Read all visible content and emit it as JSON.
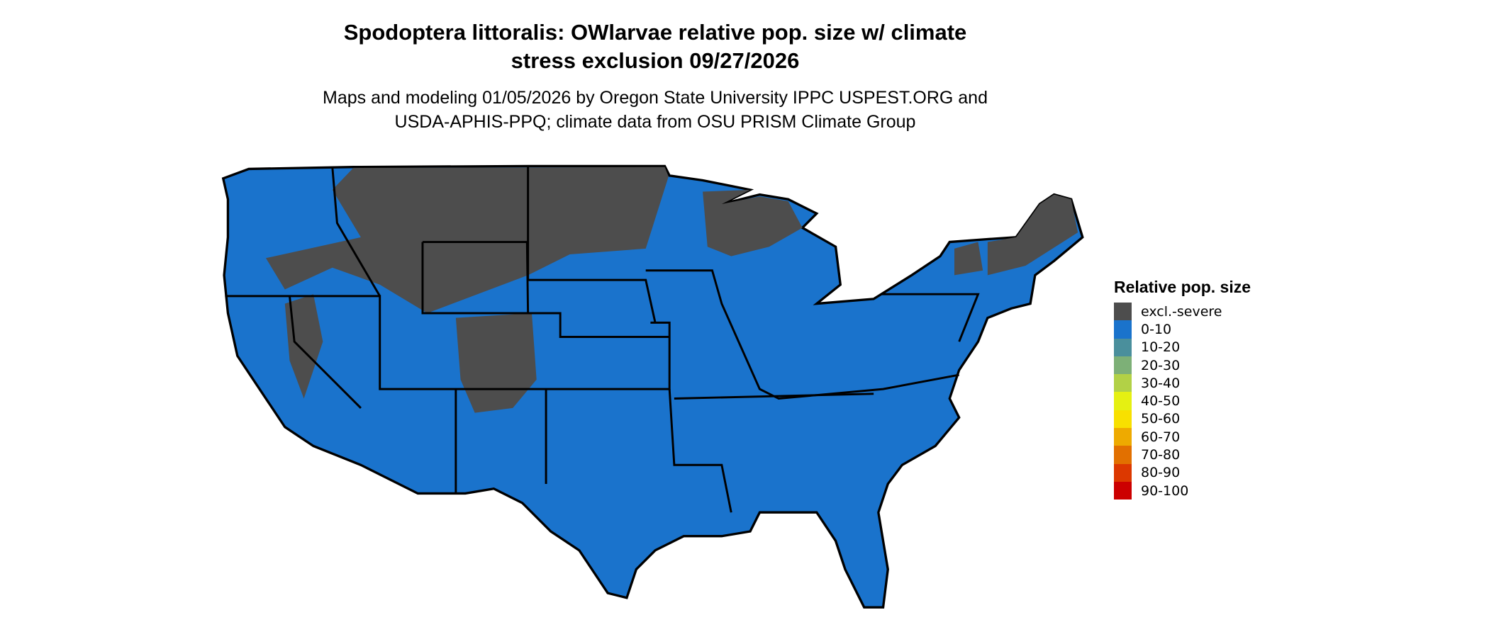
{
  "title_line1": "Spodoptera littoralis: OWlarvae relative pop. size w/ climate",
  "title_line2": "stress exclusion 09/27/2026",
  "subtitle_line1": "Maps and modeling 01/05/2026 by Oregon State University IPPC USPEST.ORG and",
  "subtitle_line2": "USDA-APHIS-PPQ; climate data from OSU PRISM Climate Group",
  "legend": {
    "title": "Relative pop. size",
    "items": [
      {
        "label": "excl.-severe",
        "color": "#4d4d4d"
      },
      {
        "label": "0-10",
        "color": "#1a73cc"
      },
      {
        "label": "10-20",
        "color": "#4a8f9c"
      },
      {
        "label": "20-30",
        "color": "#7db077"
      },
      {
        "label": "30-40",
        "color": "#b2d146"
      },
      {
        "label": "40-50",
        "color": "#e5f012"
      },
      {
        "label": "50-60",
        "color": "#f8e000"
      },
      {
        "label": "60-70",
        "color": "#eeaa00"
      },
      {
        "label": "70-80",
        "color": "#e27000"
      },
      {
        "label": "80-90",
        "color": "#dc3800"
      },
      {
        "label": "90-100",
        "color": "#cc0000"
      }
    ]
  },
  "map": {
    "region": "Contiguous United States",
    "dominant_class": "0-10",
    "excluded_class": "excl.-severe"
  }
}
